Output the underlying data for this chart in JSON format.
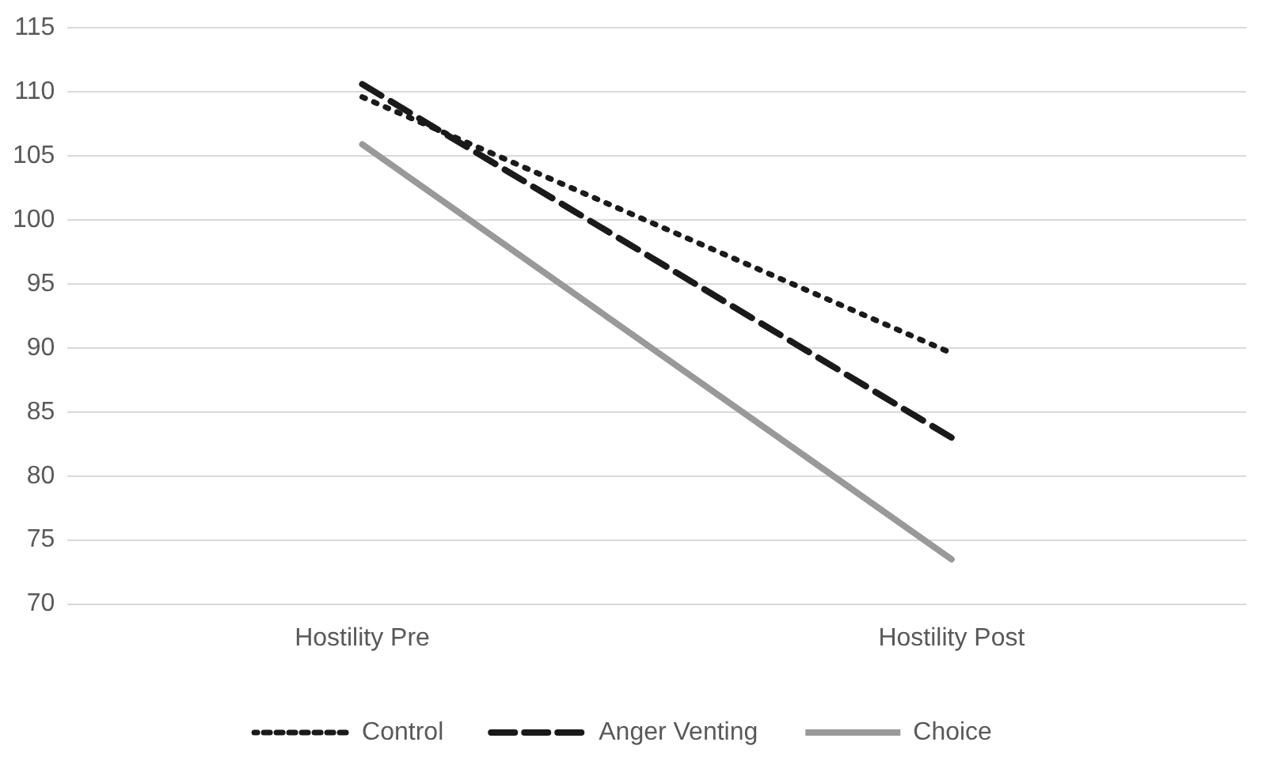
{
  "chart_data": {
    "type": "line",
    "categories": [
      "Hostility Pre",
      "Hostility Post"
    ],
    "series": [
      {
        "name": "Control",
        "color": "#1a1a1a",
        "line_style": "dotted",
        "values": [
          109.6,
          89.6
        ]
      },
      {
        "name": "Anger Venting",
        "color": "#1a1a1a",
        "line_style": "dashed",
        "values": [
          110.6,
          83.0
        ]
      },
      {
        "name": "Choice",
        "color": "#999999",
        "line_style": "solid",
        "values": [
          105.9,
          73.5
        ]
      }
    ],
    "ylim": [
      70,
      115
    ],
    "yticks": [
      70,
      75,
      80,
      85,
      90,
      95,
      100,
      105,
      110,
      115
    ],
    "grid": "y",
    "legend": "bottom",
    "marker": "none"
  }
}
